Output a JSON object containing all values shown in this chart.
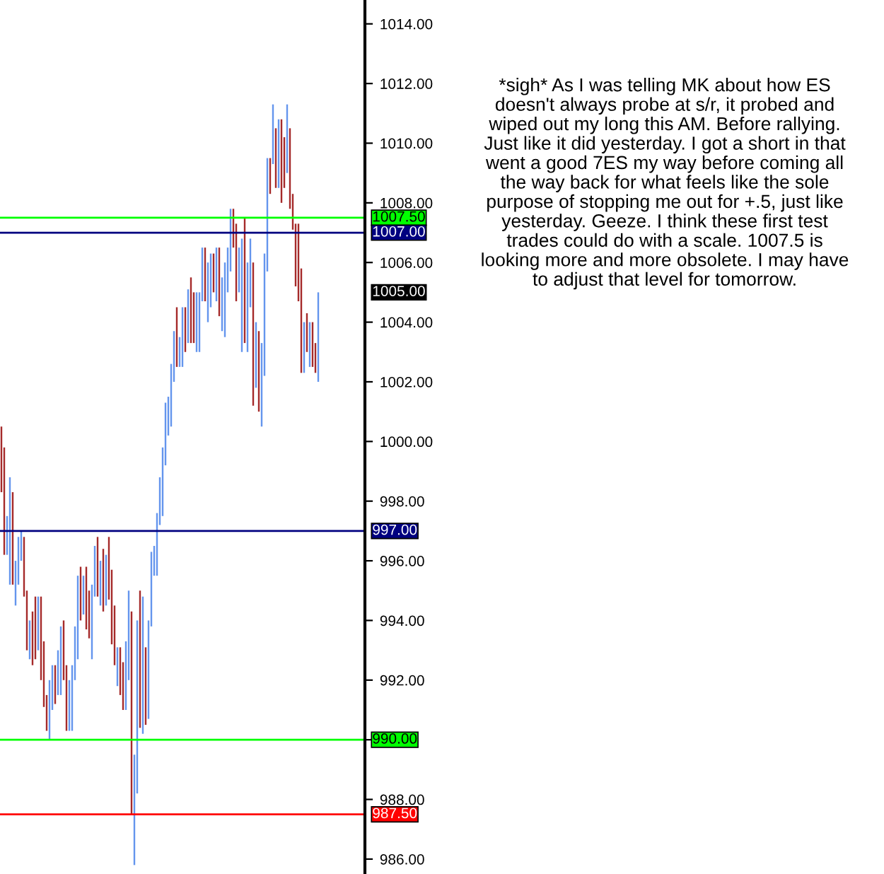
{
  "chart_data": {
    "type": "bar",
    "categories": [
      null,
      null,
      null,
      null,
      null,
      null,
      null,
      null,
      null,
      null,
      null,
      null,
      null,
      null,
      null,
      null,
      null,
      null,
      null,
      null,
      null,
      null,
      null,
      null,
      null,
      null,
      null,
      null,
      null,
      null,
      null,
      null,
      null,
      null,
      null,
      null,
      null,
      null,
      null,
      null,
      null,
      null,
      null,
      null,
      null,
      null,
      null,
      null,
      null,
      null,
      null,
      null,
      null,
      null,
      null,
      null,
      null,
      null,
      null,
      null,
      null,
      null,
      null,
      null,
      null,
      null,
      null,
      null,
      null,
      null,
      null,
      null,
      null,
      null,
      null,
      null,
      null,
      null,
      null,
      null,
      null,
      null,
      null,
      null,
      null,
      null,
      null,
      null,
      null,
      null,
      null,
      null,
      null,
      null,
      null,
      null,
      null,
      null,
      null,
      null,
      null,
      null,
      null,
      null,
      null,
      null,
      null,
      null,
      null,
      null,
      null,
      null,
      null,
      null,
      null,
      null,
      null,
      null,
      null,
      null,
      null,
      null,
      null,
      null,
      null,
      null,
      null,
      null,
      null
    ],
    "base": [
      998.3,
      996.2,
      996.2,
      995.2,
      995.2,
      994.5,
      995.2,
      996.0,
      994.8,
      993.0,
      992.7,
      992.5,
      992.7,
      993.0,
      992.0,
      991.1,
      990.3,
      990.0,
      991.0,
      991.2,
      991.5,
      991.5,
      992.0,
      990.3,
      990.3,
      990.3,
      992.0,
      992.7,
      994.0,
      994.2,
      993.7,
      993.4,
      992.7,
      994.8,
      994.8,
      994.5,
      994.3,
      994.5,
      994.7,
      993.2,
      992.5,
      991.8,
      991.5,
      991.0,
      991.0,
      992.0,
      987.5,
      985.8,
      988.2,
      990.4,
      990.2,
      990.5,
      990.7,
      993.8,
      995.5,
      995.5,
      997.2,
      997.5,
      999.2,
      1000.2,
      1000.5,
      1002.0,
      1002.5,
      1002.5,
      1002.5,
      1003.0,
      1003.3,
      1003.3,
      1003.3,
      1003.0,
      1003.0,
      1004.7,
      1004.7,
      1004.0,
      1004.5,
      1005.0,
      1004.7,
      1004.2,
      1003.7,
      1003.5,
      1005.0,
      1005.7,
      1006.5,
      1004.7,
      1005.0,
      1003.0,
      1003.3,
      1003.0,
      1004.5,
      1001.2,
      1001.8,
      1001.0,
      1000.5,
      1002.2,
      1005.7,
      1008.3,
      1009.3,
      1008.5,
      1008.5,
      1008.0,
      1008.5,
      1009.0,
      1007.8,
      1007.1,
      1005.2,
      1004.7,
      1002.3,
      1002.3,
      1003.0,
      1002.5,
      1002.5,
      1002.3,
      1002.0,
      null,
      null,
      null,
      null,
      null,
      null,
      null,
      null,
      null,
      null,
      null,
      null,
      null,
      null,
      null,
      null
    ],
    "values": [
      2.2,
      3.6,
      1.3,
      3.6,
      3.1,
      1.5,
      1.6,
      1.0,
      2.0,
      2.0,
      1.3,
      1.8,
      2.1,
      1.8,
      2.8,
      2.2,
      1.2,
      2.0,
      1.5,
      1.3,
      1.5,
      2.3,
      2.0,
      2.2,
      1.7,
      2.2,
      1.8,
      2.8,
      1.8,
      1.3,
      2.1,
      1.6,
      2.5,
      1.7,
      2.0,
      1.5,
      2.1,
      1.7,
      2.1,
      2.5,
      2.0,
      1.3,
      1.6,
      1.6,
      2.3,
      3.0,
      6.8,
      3.7,
      5.8,
      4.6,
      4.6,
      2.6,
      3.3,
      2.5,
      1.0,
      2.1,
      1.6,
      2.3,
      2.1,
      1.3,
      2.1,
      1.7,
      2.0,
      1.0,
      2.0,
      1.5,
      1.8,
      2.2,
      1.7,
      2.0,
      2.0,
      1.8,
      1.8,
      2.0,
      1.8,
      1.3,
      1.8,
      2.3,
      1.8,
      2.5,
      1.5,
      2.1,
      1.3,
      2.6,
      1.5,
      3.8,
      4.2,
      3.0,
      2.3,
      4.8,
      2.2,
      2.7,
      2.8,
      4.1,
      3.8,
      1.2,
      2.0,
      2.0,
      2.3,
      2.8,
      1.7,
      2.3,
      2.7,
      1.2,
      2.1,
      2.6,
      3.5,
      1.7,
      1.3,
      1.5,
      1.5,
      1.0,
      3.0,
      null,
      null,
      null,
      null,
      null,
      null,
      null,
      null,
      null,
      null,
      null,
      null,
      null,
      null,
      null,
      null
    ],
    "colors": [
      "#a52a2a",
      "#a52a2a",
      "#6495ed",
      "#6495ed",
      "#a52a2a",
      "#6495ed",
      "#6495ed",
      "#6495ed",
      "#a52a2a",
      "#a52a2a",
      "#6495ed",
      "#a52a2a",
      "#a52a2a",
      "#6495ed",
      "#a52a2a",
      "#a52a2a",
      "#a52a2a",
      "#6495ed",
      "#6495ed",
      "#a52a2a",
      "#6495ed",
      "#6495ed",
      "#a52a2a",
      "#a52a2a",
      "#6495ed",
      "#6495ed",
      "#6495ed",
      "#6495ed",
      "#a52a2a",
      "#6495ed",
      "#a52a2a",
      "#a52a2a",
      "#6495ed",
      "#6495ed",
      "#a52a2a",
      "#6495ed",
      "#a52a2a",
      "#6495ed",
      "#a52a2a",
      "#a52a2a",
      "#a52a2a",
      "#6495ed",
      "#a52a2a",
      "#a52a2a",
      "#6495ed",
      "#6495ed",
      "#a52a2a",
      "#6495ed",
      "#6495ed",
      "#a52a2a",
      "#6495ed",
      "#a52a2a",
      "#6495ed",
      "#6495ed",
      "#6495ed",
      "#6495ed",
      "#6495ed",
      "#6495ed",
      "#6495ed",
      "#6495ed",
      "#6495ed",
      "#6495ed",
      "#a52a2a",
      "#6495ed",
      "#6495ed",
      "#a52a2a",
      "#6495ed",
      "#a52a2a",
      "#a52a2a",
      "#6495ed",
      "#6495ed",
      "#6495ed",
      "#a52a2a",
      "#6495ed",
      "#6495ed",
      "#a52a2a",
      "#6495ed",
      "#a52a2a",
      "#6495ed",
      "#6495ed",
      "#6495ed",
      "#6495ed",
      "#a52a2a",
      "#a52a2a",
      "#6495ed",
      "#6495ed",
      "#a52a2a",
      "#6495ed",
      "#6495ed",
      "#a52a2a",
      "#6495ed",
      "#a52a2a",
      "#6495ed",
      "#6495ed",
      "#6495ed",
      "#a52a2a",
      "#6495ed",
      "#a52a2a",
      "#6495ed",
      "#a52a2a",
      "#a52a2a",
      "#6495ed",
      "#a52a2a",
      "#a52a2a",
      "#a52a2a",
      "#a52a2a",
      "#a52a2a",
      "#6495ed",
      "#a52a2a",
      "#6495ed",
      "#a52a2a",
      "#a52a2a",
      "#6495ed",
      null,
      null,
      null,
      null,
      null,
      null,
      null,
      null,
      null,
      null,
      null,
      null,
      null,
      null,
      null,
      null
    ],
    "ylim": [
      985.5,
      1014.8
    ],
    "yticks": [
      {
        "value": 986,
        "label": "986.00"
      },
      {
        "value": 988,
        "label": "988.00"
      },
      {
        "value": 990,
        "label": null
      },
      {
        "value": 992,
        "label": "992.00"
      },
      {
        "value": 994,
        "label": "994.00"
      },
      {
        "value": 996,
        "label": "996.00"
      },
      {
        "value": 998,
        "label": "998.00"
      },
      {
        "value": 1000,
        "label": "1000.00"
      },
      {
        "value": 1002,
        "label": "1002.00"
      },
      {
        "value": 1004,
        "label": "1004.00"
      },
      {
        "value": 1006,
        "label": "1006.00"
      },
      {
        "value": 1008,
        "label": "1008.00"
      },
      {
        "value": 1010,
        "label": "1010.00"
      },
      {
        "value": 1012,
        "label": "1012.00"
      },
      {
        "value": 1014,
        "label": "1014.00"
      }
    ],
    "tick_labels": "y",
    "grid": false,
    "ref_lines": [
      {
        "axis": "y",
        "value": 1007.5,
        "label": "1007.50",
        "color": "#00ff00"
      },
      {
        "axis": "y",
        "value": 1007,
        "label": "1007.00",
        "color": "#000080"
      },
      {
        "axis": "y",
        "value": 997,
        "label": "997.00",
        "color": "#000080"
      },
      {
        "axis": "y",
        "value": 990,
        "label": "990.00",
        "color": "#00ff00"
      },
      {
        "axis": "y",
        "value": 987.5,
        "label": "987.50",
        "color": "#ff0000"
      }
    ],
    "annotations": [
      "1005.00",
      "*sigh* As I was telling MK about how ES\ndoesn't always probe at s/r, it probed and\nwiped out my long this AM. Before rallying.\nJust like it did yesterday. I got a short in that\nwent a good 7ES my way before coming all\nthe way back for what feels like the sole\npurpose of stopping me out for +.5, just like\nyesterday. Geeze. I think these first test\ntrades could do with a scale. 1007.5 is\nlooking more and more obsolete. I may have\nto adjust that level for tomorrow."
    ]
  }
}
